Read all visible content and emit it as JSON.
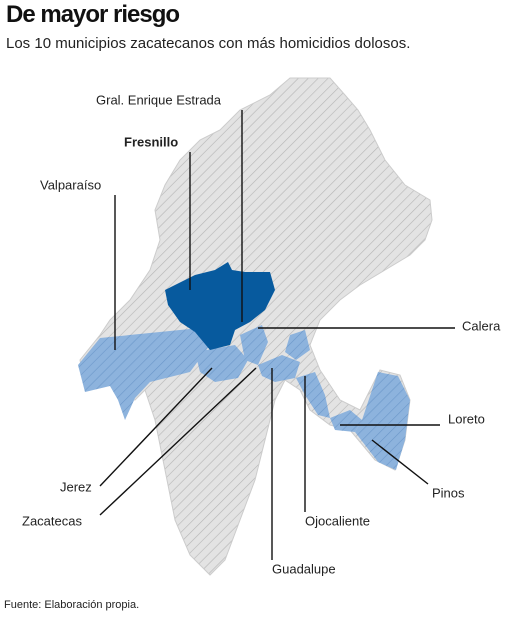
{
  "header": {
    "title": "De mayor riesgo",
    "subtitle": "Los 10 municipios zacatecanos con más homicidios dolosos."
  },
  "map": {
    "labels": [
      "Gral. Enrique Estrada",
      "Fresnillo",
      "Valparaíso",
      "Calera",
      "Loreto",
      "Jerez",
      "Pinos",
      "Zacatecas",
      "Ojocaliente",
      "Guadalupe"
    ]
  },
  "footer": {
    "source": "Fuente: Elaboración propia."
  }
}
